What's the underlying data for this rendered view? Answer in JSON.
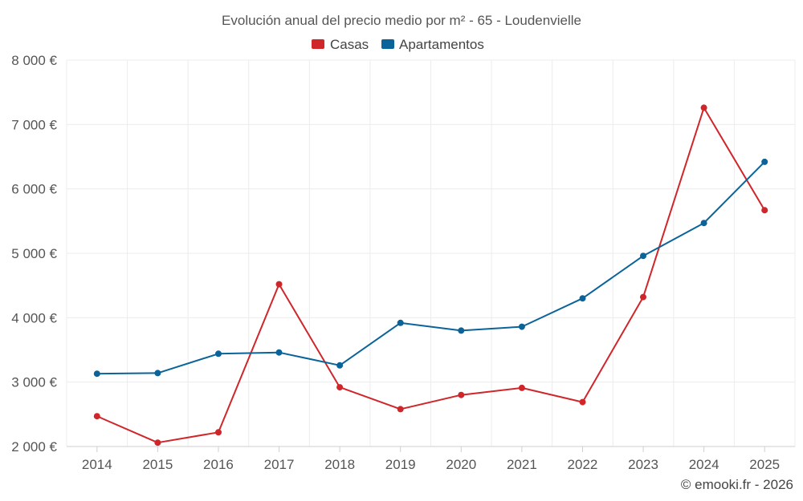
{
  "chart_data": {
    "type": "line",
    "title": "Evolución anual del precio medio por m² - 65 - Loudenvielle",
    "xlabel": "",
    "ylabel": "",
    "categories": [
      "2014",
      "2015",
      "2016",
      "2017",
      "2018",
      "2019",
      "2020",
      "2021",
      "2022",
      "2023",
      "2024",
      "2025"
    ],
    "ylim": [
      2000,
      8000
    ],
    "yticks": [
      2000,
      3000,
      4000,
      5000,
      6000,
      7000,
      8000
    ],
    "ytick_labels": [
      "2 000 €",
      "3 000 €",
      "4 000 €",
      "5 000 €",
      "6 000 €",
      "7 000 €",
      "8 000 €"
    ],
    "grid": true,
    "legend_position": "top-center",
    "series": [
      {
        "name": "Casas",
        "color": "#d0262a",
        "values": [
          2470,
          2060,
          2220,
          4520,
          2920,
          2580,
          2800,
          2910,
          2690,
          4320,
          7260,
          5670
        ]
      },
      {
        "name": "Apartamentos",
        "color": "#0a6399",
        "values": [
          3130,
          3140,
          3440,
          3460,
          3260,
          3920,
          3800,
          3860,
          4300,
          4960,
          5470,
          6420
        ]
      }
    ]
  },
  "credit": "© emooki.fr - 2026"
}
